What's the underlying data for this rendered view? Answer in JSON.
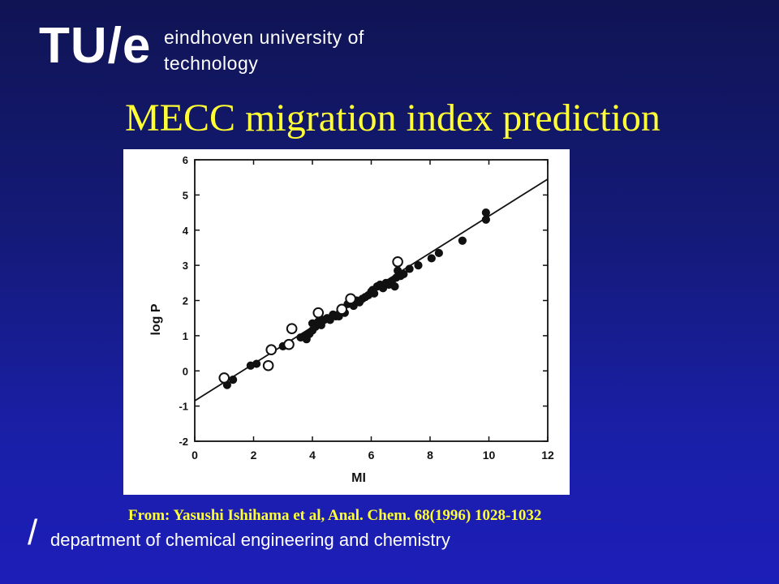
{
  "header": {
    "logo_text": "TU/e",
    "university_line1": "eindhoven university of",
    "university_line2": "technology"
  },
  "slide": {
    "title": "MECC migration index prediction",
    "source": "From: Yasushi Ishihama et al, Anal. Chem. 68(1996) 1028-1032",
    "footer_slash": "/",
    "footer_department": "department of chemical engineering and chemistry"
  },
  "colors": {
    "title": "#ffff33",
    "background_top": "#101454",
    "background_bottom": "#1c1eb8",
    "chart_background": "#ffffff",
    "chart_ink": "#111111"
  },
  "chart_data": {
    "type": "scatter",
    "xlabel": "MI",
    "ylabel": "log P",
    "xlim": [
      0,
      12
    ],
    "ylim": [
      -2,
      6
    ],
    "xticks": [
      0,
      2,
      4,
      6,
      8,
      10,
      12
    ],
    "yticks": [
      -2,
      -1,
      0,
      1,
      2,
      3,
      4,
      5,
      6
    ],
    "grid": false,
    "legend": "none",
    "fit_line": {
      "x": [
        0,
        12
      ],
      "y": [
        -0.85,
        5.45
      ]
    },
    "series": [
      {
        "marker": "filled-circle",
        "points": [
          [
            1.1,
            -0.4
          ],
          [
            1.3,
            -0.25
          ],
          [
            1.9,
            0.15
          ],
          [
            2.1,
            0.2
          ],
          [
            3.0,
            0.7
          ],
          [
            3.6,
            0.95
          ],
          [
            3.75,
            1.0
          ],
          [
            3.8,
            0.9
          ],
          [
            3.9,
            1.05
          ],
          [
            4.0,
            1.15
          ],
          [
            4.0,
            1.35
          ],
          [
            4.1,
            1.25
          ],
          [
            4.2,
            1.4
          ],
          [
            4.3,
            1.3
          ],
          [
            4.4,
            1.45
          ],
          [
            4.5,
            1.5
          ],
          [
            4.6,
            1.45
          ],
          [
            4.7,
            1.6
          ],
          [
            4.8,
            1.55
          ],
          [
            4.9,
            1.55
          ],
          [
            5.0,
            1.7
          ],
          [
            5.1,
            1.65
          ],
          [
            5.2,
            1.9
          ],
          [
            5.3,
            1.95
          ],
          [
            5.4,
            1.85
          ],
          [
            5.5,
            2.0
          ],
          [
            5.6,
            1.95
          ],
          [
            5.7,
            2.05
          ],
          [
            5.8,
            2.1
          ],
          [
            5.9,
            2.15
          ],
          [
            6.0,
            2.25
          ],
          [
            6.05,
            2.3
          ],
          [
            6.1,
            2.2
          ],
          [
            6.2,
            2.4
          ],
          [
            6.3,
            2.45
          ],
          [
            6.4,
            2.35
          ],
          [
            6.5,
            2.5
          ],
          [
            6.6,
            2.45
          ],
          [
            6.7,
            2.55
          ],
          [
            6.8,
            2.4
          ],
          [
            6.85,
            2.65
          ],
          [
            6.9,
            2.85
          ],
          [
            7.0,
            2.7
          ],
          [
            7.1,
            2.75
          ],
          [
            7.3,
            2.9
          ],
          [
            7.6,
            3.0
          ],
          [
            8.05,
            3.2
          ],
          [
            8.3,
            3.35
          ],
          [
            9.1,
            3.7
          ],
          [
            9.9,
            4.3
          ],
          [
            9.9,
            4.5
          ]
        ]
      },
      {
        "marker": "open-circle",
        "points": [
          [
            1.0,
            -0.2
          ],
          [
            2.5,
            0.15
          ],
          [
            2.6,
            0.6
          ],
          [
            3.2,
            0.75
          ],
          [
            3.3,
            1.2
          ],
          [
            4.2,
            1.65
          ],
          [
            5.0,
            1.75
          ],
          [
            5.3,
            2.05
          ],
          [
            6.9,
            3.1
          ]
        ]
      }
    ]
  }
}
